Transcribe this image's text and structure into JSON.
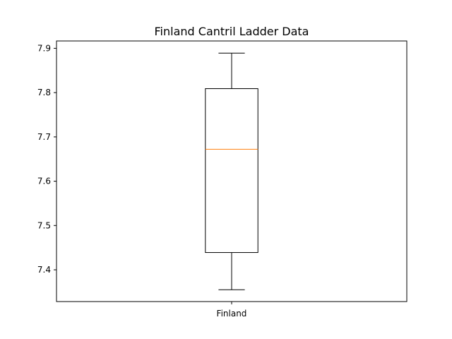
{
  "chart_data": {
    "type": "box",
    "title": "Finland Cantril Ladder Data",
    "xlabel": "",
    "ylabel": "",
    "categories": [
      "Finland"
    ],
    "ylim": [
      7.3283,
      7.9166
    ],
    "yticks": [
      7.4,
      7.5,
      7.6,
      7.7,
      7.8,
      7.9
    ],
    "ytick_labels": [
      "7.4",
      "7.5",
      "7.6",
      "7.7",
      "7.8",
      "7.9"
    ],
    "boxes": [
      {
        "category": "Finland",
        "whisker_low": 7.355,
        "q1": 7.439,
        "median": 7.672,
        "q3": 7.809,
        "whisker_high": 7.889
      }
    ],
    "grid": false,
    "colors": {
      "box": "#000000",
      "median": "#ff7f0e"
    }
  }
}
